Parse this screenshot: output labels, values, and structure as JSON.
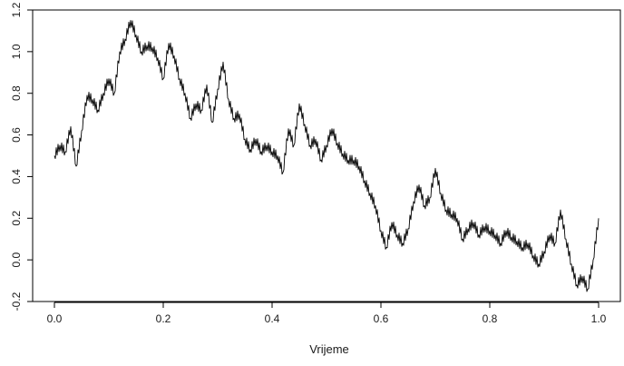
{
  "chart_data": {
    "type": "line",
    "title": "",
    "xlabel": "Vrijeme",
    "ylabel": "",
    "xlim": [
      -0.04,
      1.04
    ],
    "ylim": [
      -0.2,
      1.2
    ],
    "xticks": [
      0.0,
      0.2,
      0.4,
      0.6,
      0.8,
      1.0
    ],
    "xtick_labels": [
      "0.0",
      "0.2",
      "0.4",
      "0.6",
      "0.8",
      "1.0"
    ],
    "yticks": [
      -0.2,
      0.0,
      0.2,
      0.4,
      0.6,
      0.8,
      1.0,
      1.2
    ],
    "ytick_labels": [
      "-0.2",
      "0.0",
      "0.2",
      "0.4",
      "0.6",
      "0.8",
      "1.0",
      "1.2"
    ],
    "grid": false,
    "box": true,
    "line_color": "#000000",
    "series": [
      {
        "x": [
          0.0,
          0.01,
          0.02,
          0.03,
          0.04,
          0.05,
          0.06,
          0.07,
          0.08,
          0.09,
          0.1,
          0.11,
          0.12,
          0.13,
          0.14,
          0.15,
          0.16,
          0.17,
          0.18,
          0.19,
          0.2,
          0.21,
          0.22,
          0.23,
          0.24,
          0.25,
          0.26,
          0.27,
          0.28,
          0.29,
          0.3,
          0.31,
          0.32,
          0.33,
          0.34,
          0.35,
          0.36,
          0.37,
          0.38,
          0.39,
          0.4,
          0.41,
          0.42,
          0.43,
          0.44,
          0.45,
          0.46,
          0.47,
          0.48,
          0.49,
          0.5,
          0.51,
          0.52,
          0.53,
          0.54,
          0.55,
          0.56,
          0.57,
          0.58,
          0.59,
          0.6,
          0.61,
          0.62,
          0.63,
          0.64,
          0.65,
          0.66,
          0.67,
          0.68,
          0.69,
          0.7,
          0.71,
          0.72,
          0.73,
          0.74,
          0.75,
          0.76,
          0.77,
          0.78,
          0.79,
          0.8,
          0.81,
          0.82,
          0.83,
          0.84,
          0.85,
          0.86,
          0.87,
          0.88,
          0.89,
          0.9,
          0.91,
          0.92,
          0.93,
          0.94,
          0.95,
          0.96,
          0.97,
          0.98,
          0.99,
          1.0
        ],
        "y": [
          0.5,
          0.55,
          0.52,
          0.64,
          0.45,
          0.62,
          0.79,
          0.77,
          0.72,
          0.8,
          0.87,
          0.8,
          1.0,
          1.06,
          1.15,
          1.08,
          1.0,
          1.03,
          1.02,
          0.97,
          0.87,
          1.04,
          0.98,
          0.87,
          0.8,
          0.68,
          0.75,
          0.72,
          0.84,
          0.66,
          0.82,
          0.95,
          0.77,
          0.68,
          0.7,
          0.58,
          0.53,
          0.58,
          0.52,
          0.55,
          0.52,
          0.5,
          0.42,
          0.63,
          0.55,
          0.75,
          0.65,
          0.55,
          0.58,
          0.48,
          0.55,
          0.63,
          0.56,
          0.51,
          0.48,
          0.48,
          0.45,
          0.38,
          0.32,
          0.26,
          0.14,
          0.06,
          0.18,
          0.12,
          0.08,
          0.15,
          0.28,
          0.36,
          0.26,
          0.3,
          0.44,
          0.32,
          0.24,
          0.22,
          0.2,
          0.1,
          0.15,
          0.18,
          0.12,
          0.16,
          0.14,
          0.12,
          0.08,
          0.14,
          0.11,
          0.09,
          0.06,
          0.08,
          0.02,
          -0.02,
          0.04,
          0.12,
          0.08,
          0.24,
          0.1,
          -0.02,
          -0.12,
          -0.08,
          -0.14,
          0.0,
          0.2
        ]
      }
    ]
  }
}
